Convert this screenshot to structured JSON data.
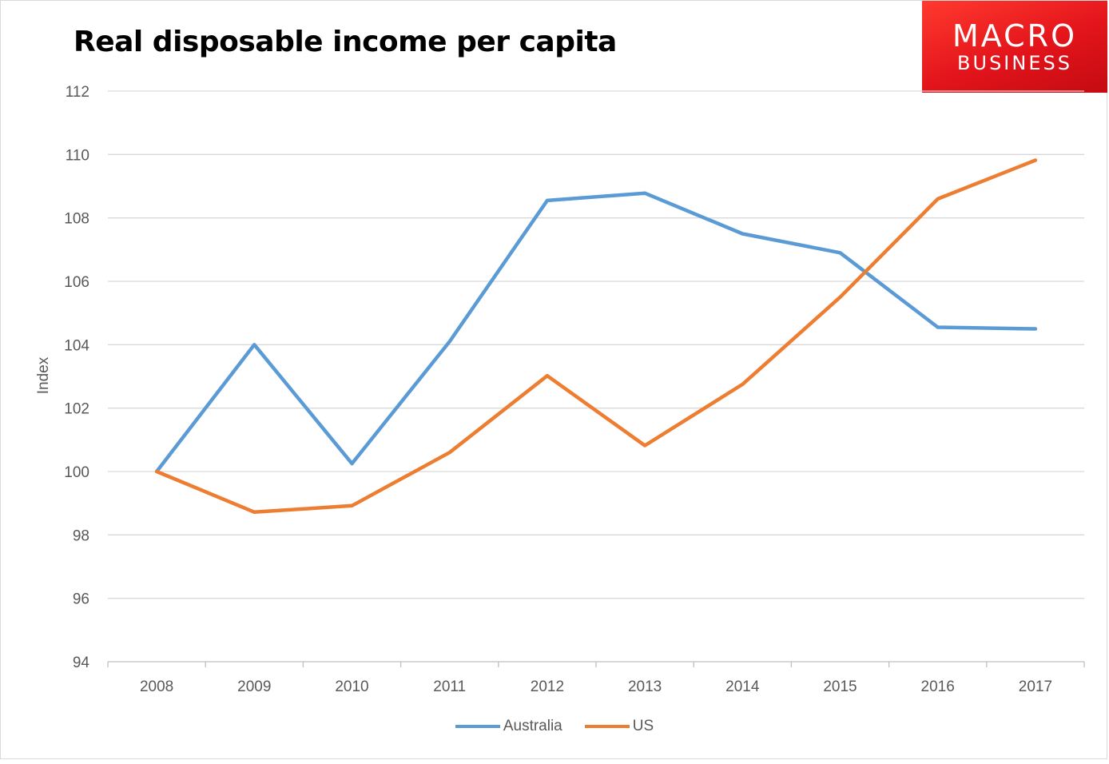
{
  "chart_data": {
    "type": "line",
    "title": "Real disposable income per capita",
    "xlabel": "",
    "ylabel": "Index",
    "categories": [
      "2008",
      "2009",
      "2010",
      "2011",
      "2012",
      "2013",
      "2014",
      "2015",
      "2016",
      "2017"
    ],
    "ylim": [
      94,
      112
    ],
    "yticks": [
      94,
      96,
      98,
      100,
      102,
      104,
      106,
      108,
      110,
      112
    ],
    "grid": true,
    "legend": "bottom",
    "series": [
      {
        "name": "Australia",
        "color": "#5b9bd5",
        "values": [
          100,
          104.0,
          100.25,
          104.1,
          108.55,
          108.78,
          107.5,
          106.9,
          104.55,
          104.5
        ]
      },
      {
        "name": "US",
        "color": "#ed7d31",
        "values": [
          100,
          98.72,
          98.92,
          100.6,
          103.02,
          100.82,
          102.75,
          105.5,
          108.6,
          109.82
        ]
      }
    ]
  },
  "logo": {
    "line1": "MACRO",
    "line2": "BUSINESS"
  }
}
